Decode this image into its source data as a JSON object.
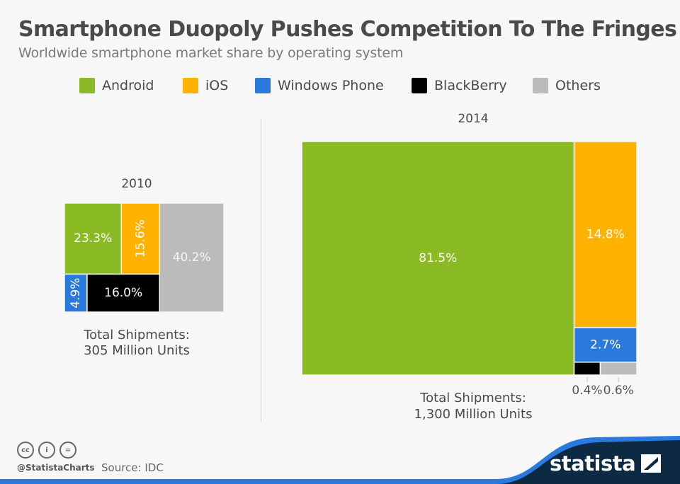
{
  "header": {
    "title": "Smartphone Duopoly Pushes Competition To The Fringes",
    "subtitle": "Worldwide smartphone market share by operating system"
  },
  "legend": [
    {
      "label": "Android",
      "color": "#8aba24"
    },
    {
      "label": "iOS",
      "color": "#ffb200"
    },
    {
      "label": "Windows Phone",
      "color": "#2a79dd"
    },
    {
      "label": "BlackBerry",
      "color": "#000000"
    },
    {
      "label": "Others",
      "color": "#bbbbbb"
    }
  ],
  "chart_data": [
    {
      "type": "treemap",
      "title": "2010",
      "total_label_line1": "Total Shipments:",
      "total_label_line2": "305 Million Units",
      "total_units_million": 305,
      "series": [
        {
          "name": "Android",
          "value": 23.3,
          "label": "23.3%"
        },
        {
          "name": "iOS",
          "value": 15.6,
          "label": "15.6%"
        },
        {
          "name": "Windows Phone",
          "value": 4.9,
          "label": "4.9%"
        },
        {
          "name": "BlackBerry",
          "value": 16.0,
          "label": "16.0%"
        },
        {
          "name": "Others",
          "value": 40.2,
          "label": "40.2%"
        }
      ]
    },
    {
      "type": "treemap",
      "title": "2014",
      "total_label_line1": "Total Shipments:",
      "total_label_line2": "1,300 Million Units",
      "total_units_million": 1300,
      "series": [
        {
          "name": "Android",
          "value": 81.5,
          "label": "81.5%"
        },
        {
          "name": "iOS",
          "value": 14.8,
          "label": "14.8%"
        },
        {
          "name": "Windows Phone",
          "value": 2.7,
          "label": "2.7%"
        },
        {
          "name": "BlackBerry",
          "value": 0.4,
          "label": "0.4%"
        },
        {
          "name": "Others",
          "value": 0.6,
          "label": "0.6%"
        }
      ]
    }
  ],
  "footer": {
    "handle": "@StatistaCharts",
    "source": "Source: IDC",
    "brand": "statista",
    "cc_icons": [
      "cc-icon",
      "attribution-icon",
      "no-derivatives-icon"
    ],
    "cc_glyphs": [
      "cc",
      "i",
      "="
    ]
  },
  "colors": {
    "background": "#f7f7f7",
    "brand_dark": "#0d2a44",
    "brand_blue": "#2a79dd"
  }
}
